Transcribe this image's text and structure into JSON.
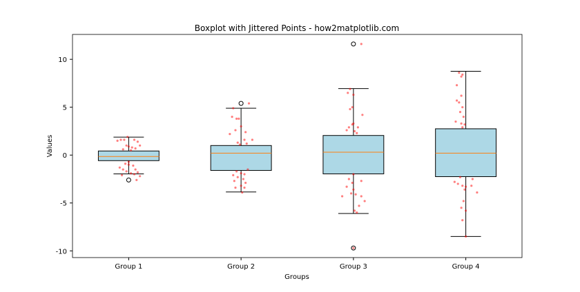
{
  "chart_data": {
    "type": "boxplot",
    "title": "Boxplot with Jittered Points - how2matplotlib.com",
    "xlabel": "Groups",
    "ylabel": "Values",
    "ylim": [
      -10.7,
      12.6
    ],
    "yticks": [
      10,
      5,
      0,
      -5,
      -10
    ],
    "categories": [
      "Group 1",
      "Group 2",
      "Group 3",
      "Group 4"
    ],
    "colors": {
      "box": "#add8e6",
      "median": "#ff7f0e",
      "points": "#ff0000"
    },
    "boxes": [
      {
        "q1": -0.58,
        "median": -0.15,
        "q3": 0.43,
        "whislo": -1.96,
        "whishi": 1.88,
        "fliers": [
          -2.6
        ]
      },
      {
        "q1": -1.6,
        "median": 0.2,
        "q3": 1.0,
        "whislo": -3.85,
        "whishi": 4.9,
        "fliers": [
          5.4
        ]
      },
      {
        "q1": -1.96,
        "median": 0.3,
        "q3": 2.05,
        "whislo": -6.1,
        "whishi": 6.95,
        "fliers": [
          11.6,
          -9.7
        ]
      },
      {
        "q1": -2.25,
        "median": 0.2,
        "q3": 2.75,
        "whislo": -8.5,
        "whishi": 8.75,
        "fliers": []
      }
    ],
    "points": [
      [
        [
          0.9,
          1.5
        ],
        [
          0.93,
          1.6
        ],
        [
          0.96,
          1.6
        ],
        [
          1.05,
          1.6
        ],
        [
          1.08,
          1.4
        ],
        [
          0.98,
          1.0
        ],
        [
          1.0,
          0.9
        ],
        [
          1.03,
          0.8
        ],
        [
          1.06,
          0.7
        ],
        [
          1.1,
          1.0
        ],
        [
          0.95,
          0.6
        ],
        [
          1.02,
          0.5
        ],
        [
          0.97,
          -0.9
        ],
        [
          1.0,
          -1.0
        ],
        [
          1.04,
          -1.1
        ],
        [
          0.92,
          -1.3
        ],
        [
          0.95,
          -1.5
        ],
        [
          1.06,
          -1.5
        ],
        [
          0.98,
          -1.7
        ],
        [
          1.02,
          -1.9
        ],
        [
          1.08,
          -1.8
        ],
        [
          0.94,
          -2.1
        ],
        [
          1.05,
          -2.0
        ],
        [
          1.1,
          -2.2
        ],
        [
          1.07,
          -2.6
        ],
        [
          1.0,
          -0.7
        ],
        [
          0.99,
          1.9
        ]
      ],
      [
        [
          1.93,
          4.9
        ],
        [
          1.92,
          4.0
        ],
        [
          1.96,
          3.8
        ],
        [
          1.98,
          3.8
        ],
        [
          2.0,
          3.0
        ],
        [
          1.95,
          2.6
        ],
        [
          2.04,
          2.4
        ],
        [
          1.9,
          2.2
        ],
        [
          2.03,
          1.6
        ],
        [
          2.1,
          1.6
        ],
        [
          1.97,
          1.3
        ],
        [
          2.05,
          1.2
        ],
        [
          1.99,
          1.1
        ],
        [
          2.07,
          5.4
        ],
        [
          1.96,
          -1.7
        ],
        [
          2.0,
          -1.9
        ],
        [
          2.03,
          -2.0
        ],
        [
          1.93,
          -2.1
        ],
        [
          1.97,
          -2.3
        ],
        [
          2.02,
          -2.5
        ],
        [
          1.94,
          -2.7
        ],
        [
          2.04,
          -2.9
        ],
        [
          2.0,
          -3.2
        ],
        [
          1.95,
          -3.4
        ],
        [
          2.03,
          -3.4
        ],
        [
          2.01,
          -3.9
        ],
        [
          2.06,
          -1.5
        ]
      ],
      [
        [
          2.97,
          6.9
        ],
        [
          2.95,
          6.5
        ],
        [
          3.0,
          6.3
        ],
        [
          2.99,
          5.0
        ],
        [
          2.97,
          4.8
        ],
        [
          3.08,
          4.2
        ],
        [
          3.0,
          3.3
        ],
        [
          2.99,
          3.2
        ],
        [
          2.96,
          2.9
        ],
        [
          3.04,
          2.9
        ],
        [
          3.01,
          2.5
        ],
        [
          2.94,
          2.6
        ],
        [
          3.03,
          2.3
        ],
        [
          3.07,
          11.6
        ],
        [
          3.0,
          -2.0
        ],
        [
          2.96,
          -2.5
        ],
        [
          2.99,
          -2.9
        ],
        [
          3.07,
          -2.7
        ],
        [
          2.94,
          -3.3
        ],
        [
          3.0,
          -3.6
        ],
        [
          2.98,
          -4.0
        ],
        [
          3.02,
          -4.1
        ],
        [
          3.07,
          -4.3
        ],
        [
          2.9,
          -4.3
        ],
        [
          3.1,
          -4.8
        ],
        [
          3.05,
          -5.3
        ],
        [
          3.03,
          -6.0
        ],
        [
          3.01,
          -5.8
        ],
        [
          3.0,
          -9.7
        ]
      ],
      [
        [
          3.94,
          8.6
        ],
        [
          3.97,
          8.4
        ],
        [
          3.96,
          8.2
        ],
        [
          3.92,
          7.3
        ],
        [
          3.96,
          6.2
        ],
        [
          3.92,
          5.7
        ],
        [
          3.94,
          5.5
        ],
        [
          3.97,
          5.0
        ],
        [
          3.95,
          4.5
        ],
        [
          3.98,
          4.0
        ],
        [
          3.91,
          3.5
        ],
        [
          3.96,
          3.3
        ],
        [
          3.99,
          3.2
        ],
        [
          3.97,
          2.9
        ],
        [
          3.95,
          -2.3
        ],
        [
          4.06,
          -2.5
        ],
        [
          3.9,
          -2.8
        ],
        [
          3.93,
          -3.0
        ],
        [
          3.97,
          -3.2
        ],
        [
          4.0,
          -3.3
        ],
        [
          4.05,
          -3.2
        ],
        [
          3.99,
          -3.6
        ],
        [
          4.1,
          -3.9
        ],
        [
          3.98,
          -4.8
        ],
        [
          3.96,
          -5.5
        ],
        [
          4.0,
          -5.8
        ],
        [
          3.97,
          -6.8
        ],
        [
          4.0,
          -8.5
        ]
      ]
    ]
  }
}
